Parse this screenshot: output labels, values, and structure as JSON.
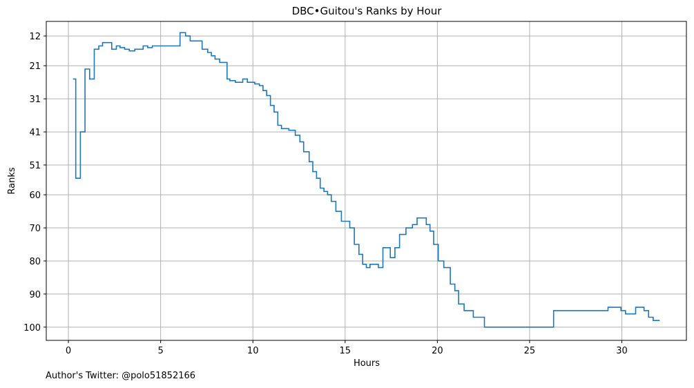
{
  "chart_data": {
    "type": "line",
    "step": "post",
    "title": "DBC•Guitou's Ranks by Hour",
    "xlabel": "Hours",
    "ylabel": "Ranks",
    "xlim": [
      -1.2,
      33.5
    ],
    "ylim": [
      104,
      7.6
    ],
    "y_inverted": true,
    "grid": true,
    "x_ticks": [
      0,
      5,
      10,
      15,
      20,
      25,
      30
    ],
    "y_ticks": [
      12,
      21,
      31,
      41,
      51,
      60,
      70,
      80,
      90,
      100
    ],
    "color": "#1f77b4",
    "series": [
      {
        "x": [
          0.25,
          0.4,
          0.65,
          0.9,
          1.15,
          1.4,
          1.65,
          1.85,
          2.1,
          2.35,
          2.6,
          2.8,
          3.05,
          3.3,
          3.6,
          4.05,
          4.3,
          4.55,
          4.75,
          5.1,
          5.5,
          6.05,
          6.35,
          6.6,
          6.85,
          7.25,
          7.55,
          7.75,
          7.95,
          8.2,
          8.6,
          8.75,
          9.05,
          9.45,
          9.7,
          9.9,
          10.1,
          10.35,
          10.55,
          10.75,
          10.95,
          11.15,
          11.35,
          11.55,
          11.95,
          12.3,
          12.55,
          12.75,
          13.05,
          13.25,
          13.45,
          13.65,
          13.85,
          14.05,
          14.25,
          14.5,
          14.8,
          15.25,
          15.5,
          15.75,
          15.95,
          16.15,
          16.35,
          16.55,
          16.8,
          17.05,
          17.45,
          17.7,
          17.95,
          18.3,
          18.65,
          18.9,
          19.2,
          19.4,
          19.6,
          19.8,
          20.05,
          20.35,
          20.7,
          20.95,
          21.15,
          21.45,
          21.95,
          22.25,
          22.55,
          23.05,
          23.25,
          26.3,
          29.25,
          29.95,
          30.2,
          30.75,
          31.2,
          31.45,
          31.7,
          31.9,
          32.05
        ],
        "y": [
          25,
          55,
          41,
          22,
          25,
          16,
          15,
          14,
          14,
          16,
          15,
          15.5,
          16,
          16.5,
          16,
          15,
          15.5,
          15,
          15,
          15,
          15,
          11,
          12,
          13.5,
          13.5,
          16,
          17,
          18,
          19,
          20,
          25,
          25.5,
          26,
          25,
          26,
          26,
          26.5,
          27,
          28.5,
          30,
          33,
          35,
          39,
          40,
          40.5,
          42,
          44,
          47,
          50,
          53,
          55,
          58,
          59,
          60,
          62,
          65,
          68,
          70,
          75,
          78,
          81,
          82,
          81,
          81,
          82,
          76,
          79,
          76,
          72,
          70,
          69,
          67,
          67,
          69,
          71,
          75,
          80,
          82,
          87,
          89,
          93,
          95,
          97,
          97,
          100,
          100,
          100,
          95,
          94,
          95,
          96,
          94,
          95,
          97,
          98,
          98,
          98
        ]
      }
    ],
    "annotation": "Author's Twitter: @polo51852166"
  }
}
